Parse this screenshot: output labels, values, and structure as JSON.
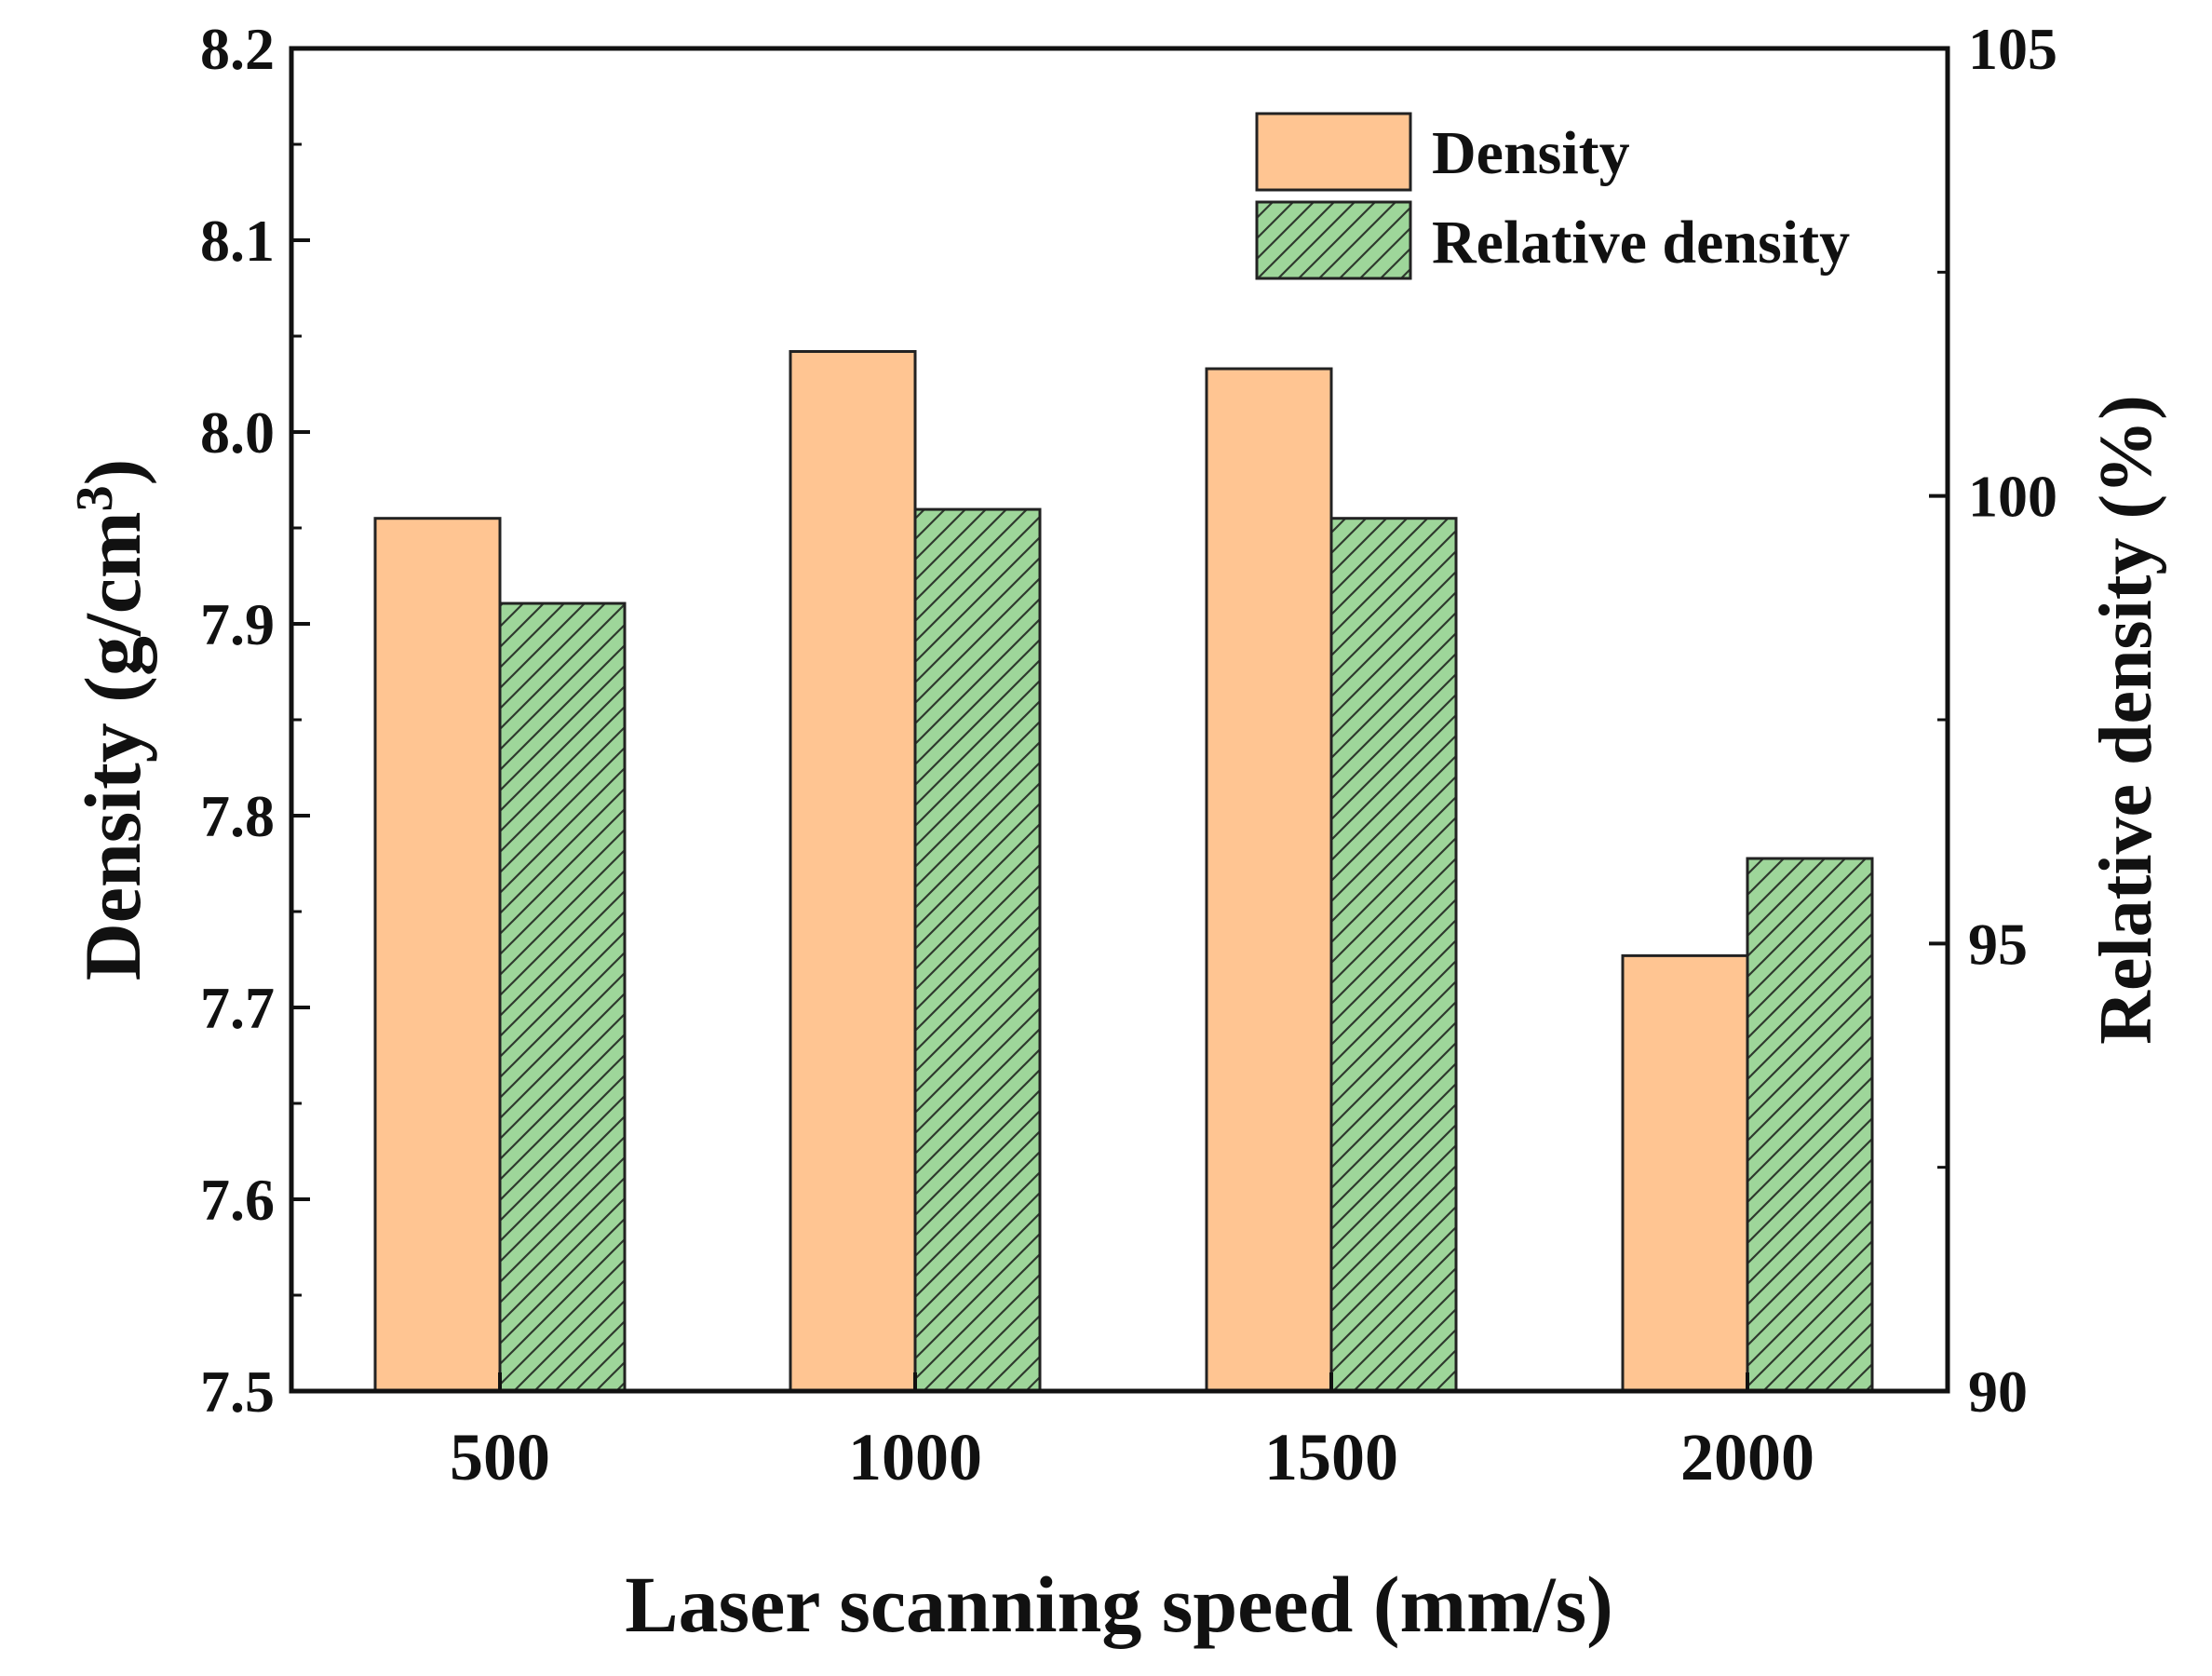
{
  "chart_data": {
    "type": "bar",
    "title": "",
    "xlabel": "Laser scanning speed (mm/s)",
    "ylabel": "Density (g/cm",
    "ylabel_superscript": "3",
    "ylabel_suffix": ")",
    "y2label": "Relative density (%)",
    "categories": [
      "500",
      "1000",
      "1500",
      "2000"
    ],
    "ylim": [
      7.5,
      8.2
    ],
    "y2lim": [
      90,
      105
    ],
    "yticks": [
      "7.5",
      "7.6",
      "7.7",
      "7.8",
      "7.9",
      "8.0",
      "8.1",
      "8.2"
    ],
    "y2ticks": [
      "90",
      "95",
      "100",
      "105"
    ],
    "series": [
      {
        "name": "Density",
        "axis": "left",
        "values": [
          7.955,
          8.042,
          8.033,
          7.727
        ],
        "color": "#FFC592",
        "pattern": "solid"
      },
      {
        "name": "Relative density",
        "axis": "right",
        "values": [
          98.8,
          99.85,
          99.75,
          95.95
        ],
        "color": "#9ED69A",
        "pattern": "hatch"
      }
    ],
    "legend_position": "top-right",
    "grid": false
  }
}
